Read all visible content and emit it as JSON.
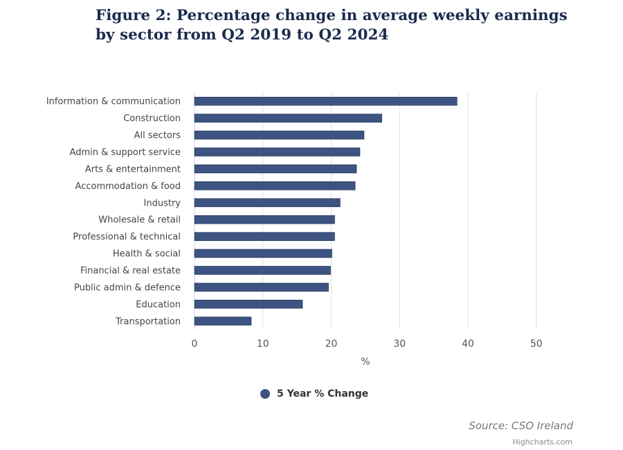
{
  "chart_data": {
    "type": "bar",
    "orientation": "horizontal",
    "title": "Figure 2: Percentage change in average weekly earnings by sector from Q2 2019 to Q2 2024",
    "categories": [
      "Information & communication",
      "Construction",
      "All sectors",
      "Admin & support service",
      "Arts & entertainment",
      "Accommodation & food",
      "Industry",
      "Wholesale & retail",
      "Professional & technical",
      "Health & social",
      "Financial & real estate",
      "Public admin & defence",
      "Education",
      "Transportation"
    ],
    "series": [
      {
        "name": "5 Year % Change",
        "color": "#3d5381",
        "values": [
          38.4,
          27.4,
          24.8,
          24.2,
          23.7,
          23.5,
          21.3,
          20.5,
          20.5,
          20.1,
          19.9,
          19.6,
          15.8,
          8.3
        ]
      }
    ],
    "xlabel": "%",
    "xlim": [
      0,
      50
    ],
    "xticks": [
      0,
      10,
      20,
      30,
      40,
      50
    ],
    "grid": true,
    "legend": "bottom"
  },
  "source": "Source: CSO Ireland",
  "credits": "Highcharts.com"
}
